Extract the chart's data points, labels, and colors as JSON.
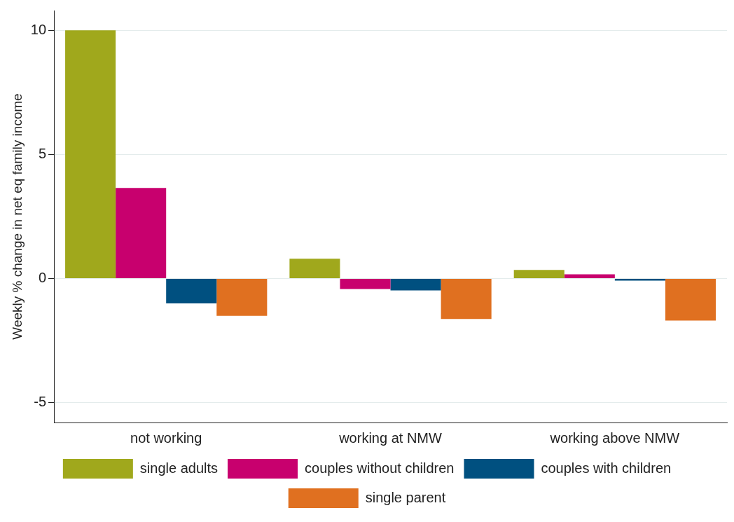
{
  "chart_data": {
    "type": "bar",
    "ylabel": "Weekly % change in net eq family income",
    "categories": [
      "not working",
      "working at NMW",
      "working above NMW"
    ],
    "series": [
      {
        "name": "single adults",
        "color": "#a0a81c",
        "values": [
          10,
          0.8,
          0.35
        ]
      },
      {
        "name": "couples without children",
        "color": "#c8006e",
        "values": [
          3.65,
          -0.42,
          0.17
        ]
      },
      {
        "name": "couples with children",
        "color": "#005080",
        "values": [
          -1,
          -0.48,
          -0.08
        ]
      },
      {
        "name": "single parent",
        "color": "#e07020",
        "values": [
          -1.5,
          -1.63,
          -1.69
        ]
      }
    ],
    "ylim": [
      -5.8,
      10.8
    ],
    "yticks": [
      -5,
      0,
      5,
      10
    ],
    "grid": "y",
    "legend": "bottom"
  }
}
